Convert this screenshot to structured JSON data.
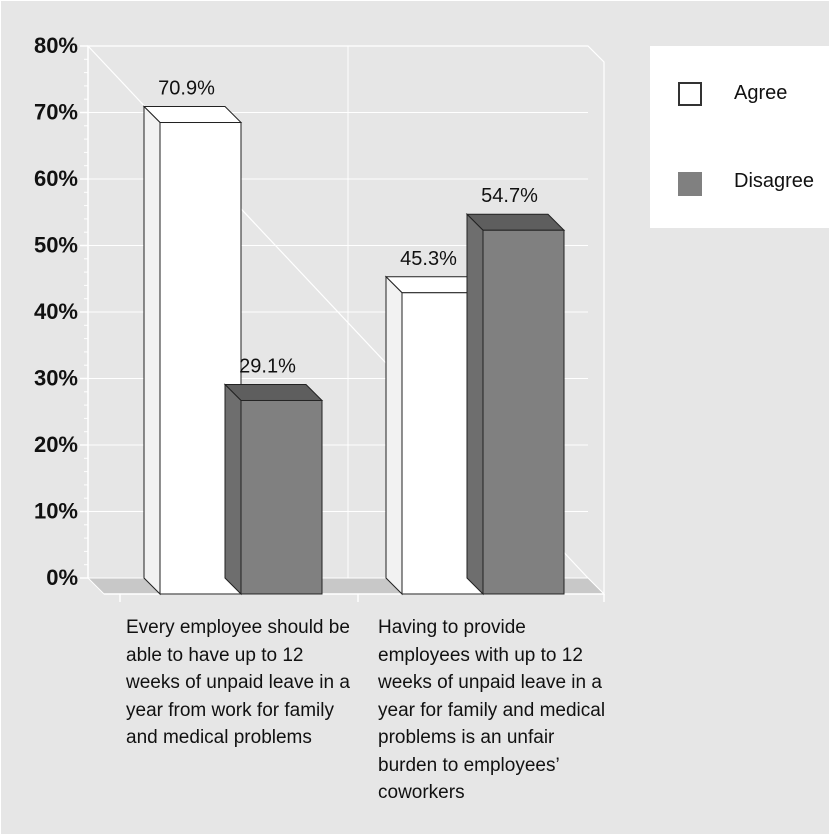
{
  "chart_data": {
    "type": "bar",
    "categories": [
      "Every employee should be able to have up to 12 weeks of unpaid leave in a year from work for family and medical problems",
      "Having to provide employees with up to 12 weeks of unpaid leave in a year for family and medical problems is an unfair burden to employees’ coworkers"
    ],
    "series": [
      {
        "name": "Agree",
        "values": [
          70.9,
          45.3
        ],
        "labels": [
          "70.9%",
          "45.3%"
        ],
        "color": "#ffffff"
      },
      {
        "name": "Disagree",
        "values": [
          29.1,
          54.7
        ],
        "labels": [
          "29.1%",
          "54.7%"
        ],
        "color": "#808080"
      }
    ],
    "yticks": [
      "0%",
      "10%",
      "20%",
      "30%",
      "40%",
      "50%",
      "60%",
      "70%",
      "80%"
    ],
    "ylim": [
      0,
      80
    ],
    "grid": true,
    "legend_position": "top-right",
    "style": "3d"
  },
  "legend": {
    "agree_label": "Agree",
    "disagree_label": "Disagree"
  },
  "category_labels": [
    [
      "Every employee should be",
      "able to have up to 12",
      "weeks of unpaid leave in a",
      "year from work for family",
      "and medical problems"
    ],
    [
      "Having to provide",
      "employees with up to 12",
      "weeks of unpaid leave in a",
      "year for family and medical",
      "problems is an unfair",
      "burden to employees’",
      "coworkers"
    ]
  ]
}
